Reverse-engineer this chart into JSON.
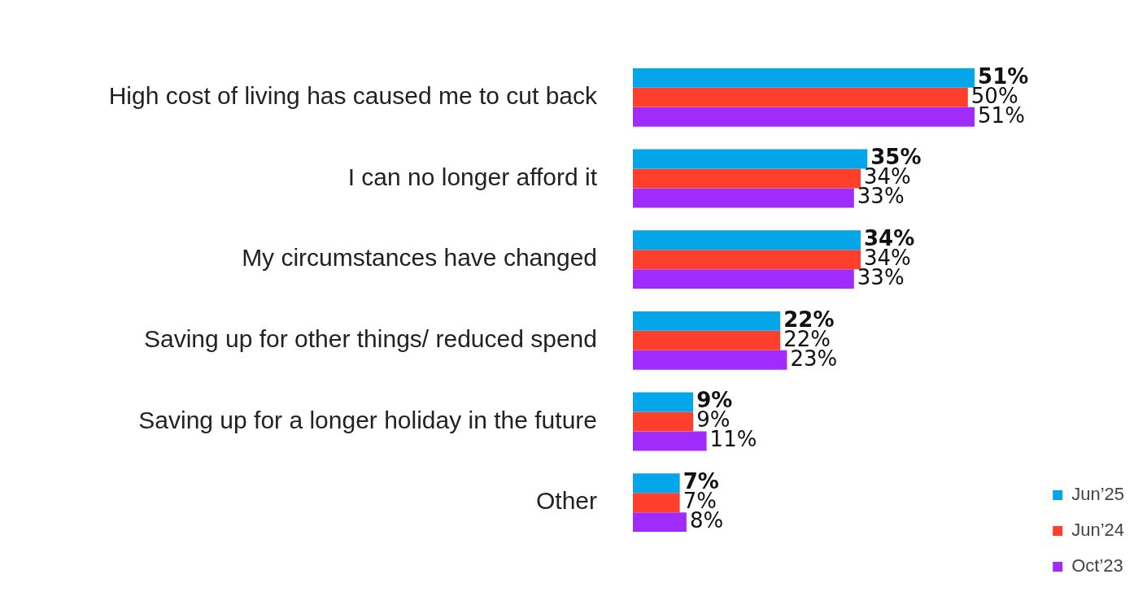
{
  "chart_data": {
    "type": "bar",
    "orientation": "horizontal",
    "categories": [
      "High cost of living has caused me to cut back",
      "I can no longer afford it",
      "My circumstances have changed",
      "Saving up for other things/ reduced spend",
      "Saving up for a longer holiday in the future",
      "Other"
    ],
    "series": [
      {
        "name": "Jun’25",
        "color": "#05a5ea",
        "values": [
          51,
          35,
          34,
          22,
          9,
          7
        ],
        "value_labels": [
          "51%",
          "35%",
          "34%",
          "22%",
          "9%",
          "7%"
        ]
      },
      {
        "name": "Jun’24",
        "color": "#fe3f2c",
        "values": [
          50,
          34,
          34,
          22,
          9,
          7
        ],
        "value_labels": [
          "50%",
          "34%",
          "34%",
          "22%",
          "9%",
          "7%"
        ]
      },
      {
        "name": "Oct’23",
        "color": "#9f2cfb",
        "values": [
          51,
          33,
          33,
          23,
          11,
          8
        ],
        "value_labels": [
          "51%",
          "33%",
          "33%",
          "23%",
          "11%",
          "8%"
        ]
      }
    ],
    "legend": "bottom right",
    "grid": false
  }
}
